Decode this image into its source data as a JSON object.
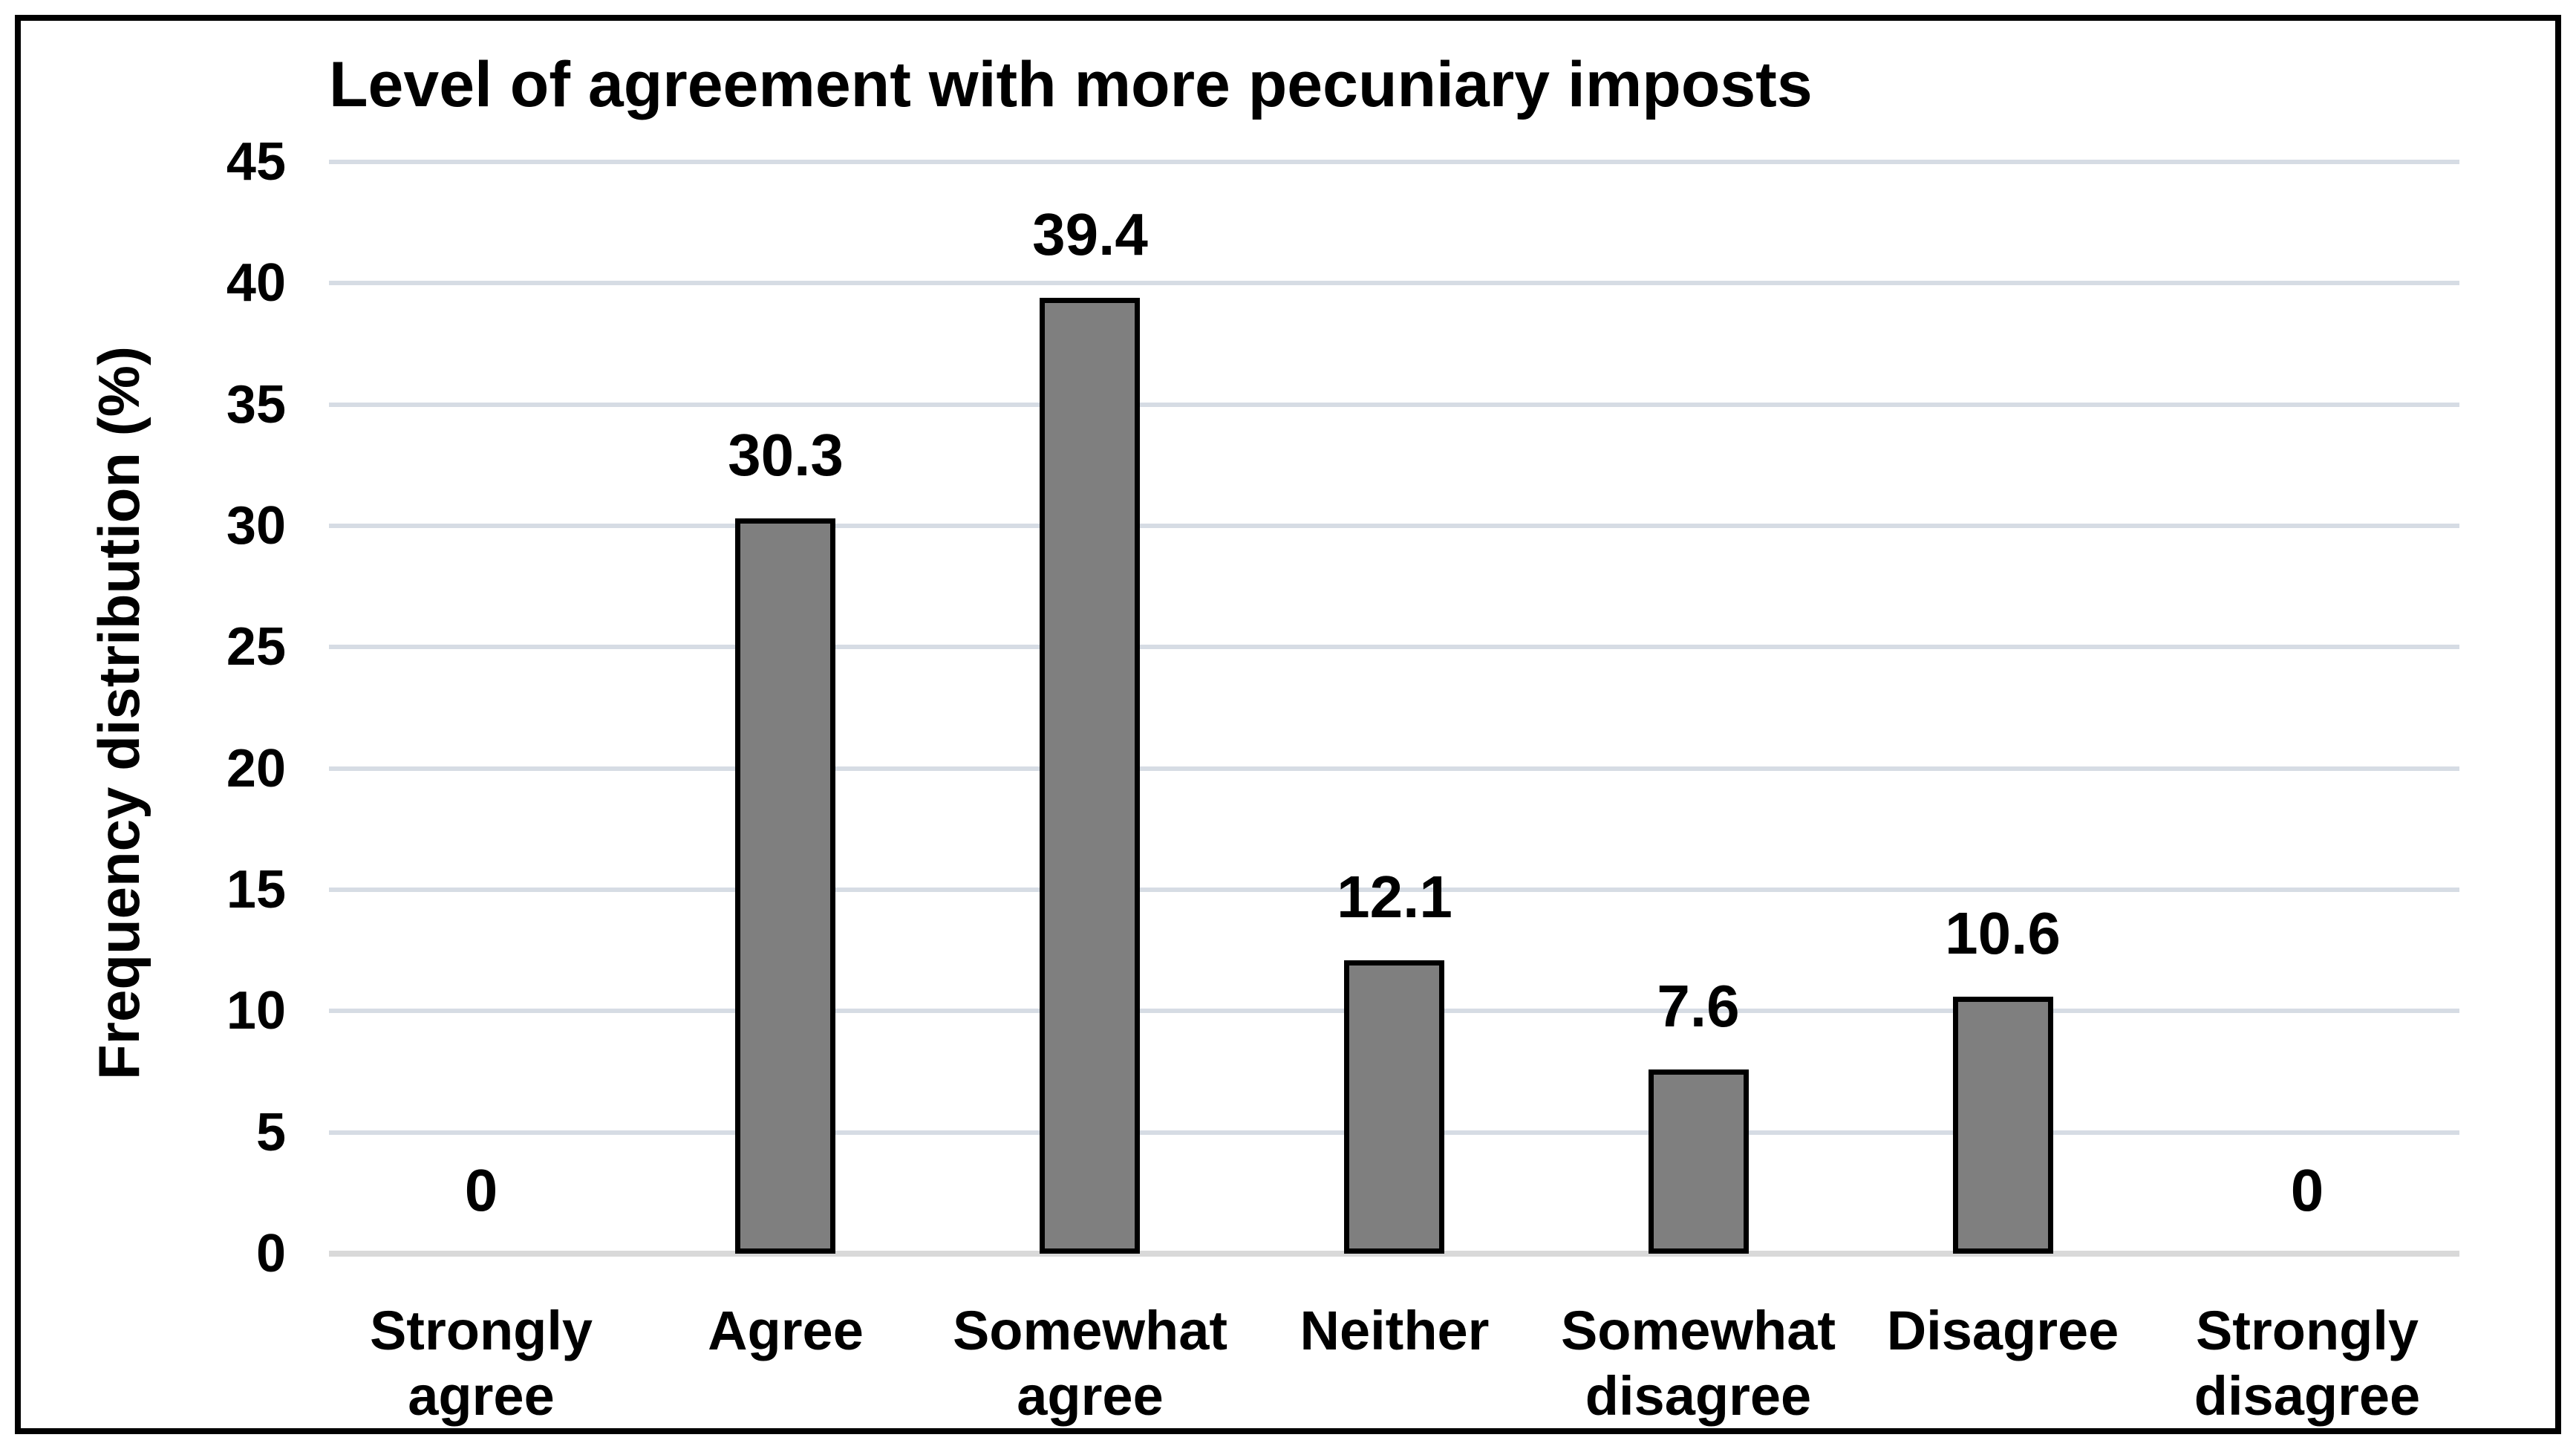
{
  "chart_data": {
    "type": "bar",
    "title": "Level of agreement with more pecuniary imposts",
    "xlabel": "",
    "ylabel": "Frequency distribution (%)",
    "categories": [
      "Strongly agree",
      "Agree",
      "Somewhat agree",
      "Neither",
      "Somewhat disagree",
      "Disagree",
      "Strongly disagree"
    ],
    "values": [
      0,
      30.3,
      39.4,
      12.1,
      7.6,
      10.6,
      0
    ],
    "data_labels": [
      "0",
      "30.3",
      "39.4",
      "12.1",
      "7.6",
      "10.6",
      "0"
    ],
    "yticks": [
      0,
      5,
      10,
      15,
      20,
      25,
      30,
      35,
      40,
      45
    ],
    "ylim": [
      0,
      45
    ],
    "grid": "horizontal gridlines on",
    "legend": "none",
    "colors": {
      "bar_fill": "#7F7F7F",
      "bar_border": "#000000",
      "gridline": "#D6DCE4",
      "axis_baseline": "#D9D9D9",
      "text": "#000000",
      "frame_border": "#000000",
      "background": "#FFFFFF"
    }
  }
}
